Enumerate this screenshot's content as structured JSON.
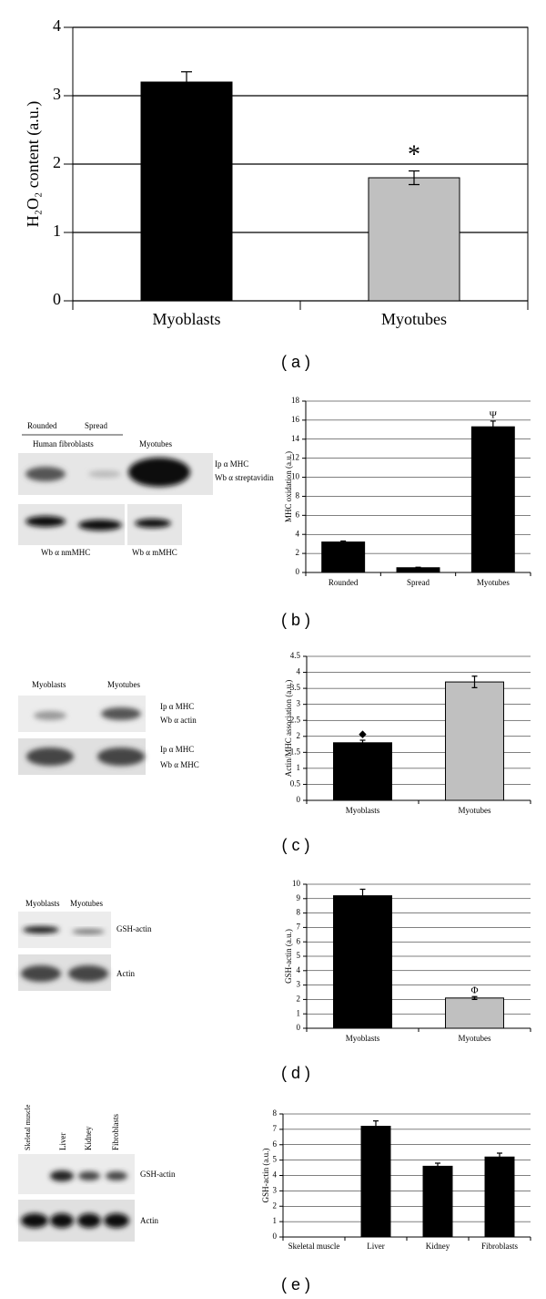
{
  "chart_data": [
    {
      "type": "bar",
      "y_label": "H₂O₂ content (a.u.)",
      "categories": [
        "Myoblasts",
        "Myotubes"
      ],
      "values": [
        3.2,
        1.8
      ],
      "errors": [
        0.15,
        0.1
      ],
      "colors": [
        "#000000",
        "#c0c0c0"
      ],
      "annotations": [
        null,
        "*"
      ],
      "ylim": [
        0,
        4
      ],
      "yticks": [
        0,
        1,
        2,
        3,
        4
      ],
      "grid": true
    },
    {
      "type": "bar",
      "y_label": "MHC oxidation (a.u.)",
      "categories": [
        "Rounded",
        "Spread",
        "Myotubes"
      ],
      "values": [
        3.2,
        0.5,
        15.3
      ],
      "errors": [
        0.1,
        0.05,
        0.6
      ],
      "colors": [
        "#000000",
        "#000000",
        "#000000"
      ],
      "annotations": [
        null,
        null,
        "Ψ"
      ],
      "ylim": [
        0,
        18
      ],
      "yticks": [
        0,
        2,
        4,
        6,
        8,
        10,
        12,
        14,
        16,
        18
      ],
      "grid": true
    },
    {
      "type": "bar",
      "y_label": "Actin/MHC association (a.u.)",
      "categories": [
        "Myoblasts",
        "Myotubes"
      ],
      "values": [
        1.8,
        3.7
      ],
      "errors": [
        0.08,
        0.18
      ],
      "colors": [
        "#000000",
        "#c0c0c0"
      ],
      "annotations": [
        "◆",
        null
      ],
      "ylim": [
        0,
        4.5
      ],
      "yticks": [
        0,
        0.5,
        1,
        1.5,
        2,
        2.5,
        3,
        3.5,
        4,
        4.5
      ],
      "grid": true
    },
    {
      "type": "bar",
      "y_label": "GSH-actin (a.u.)",
      "categories": [
        "Myoblasts",
        "Myotubes"
      ],
      "values": [
        9.2,
        2.1
      ],
      "errors": [
        0.45,
        0.1
      ],
      "colors": [
        "#000000",
        "#c0c0c0"
      ],
      "annotations": [
        null,
        "Φ"
      ],
      "ylim": [
        0,
        10
      ],
      "yticks": [
        0,
        1,
        2,
        3,
        4,
        5,
        6,
        7,
        8,
        9,
        10
      ],
      "grid": true
    },
    {
      "type": "bar",
      "y_label": "GSH-actin (a.u.)",
      "categories": [
        "Skeletal muscle",
        "Liver",
        "Kidney",
        "Fibroblasts"
      ],
      "values": [
        0,
        7.2,
        4.6,
        5.2
      ],
      "errors": [
        null,
        0.35,
        0.2,
        0.25
      ],
      "colors": [
        "#000000",
        "#000000",
        "#000000",
        "#000000"
      ],
      "annotations": [
        null,
        null,
        null,
        null
      ],
      "ylim": [
        0,
        8
      ],
      "yticks": [
        0,
        1,
        2,
        3,
        4,
        5,
        6,
        7,
        8
      ],
      "grid": true
    }
  ],
  "panel_labels": [
    "( a )",
    "( b )",
    "( c )",
    "( d )",
    "( e )"
  ],
  "blots": {
    "b": {
      "lanes": [
        "Rounded",
        "Spread"
      ],
      "group": "Human fibroblasts",
      "third_lane": "Myotubes",
      "probes": [
        "Ip α MHC",
        "Wb α streptavidin"
      ],
      "bottom": [
        "Wb α nmMHC",
        "Wb α mMHC"
      ]
    },
    "c": {
      "lanes": [
        "Myoblasts",
        "Myotubes"
      ],
      "probes_top": [
        "Ip α MHC",
        "Wb α actin"
      ],
      "probes_bottom": [
        "Ip α MHC",
        "Wb α MHC"
      ]
    },
    "d": {
      "lanes": [
        "Myoblasts",
        "Myotubes"
      ],
      "probes": [
        "GSH-actin",
        "Actin"
      ]
    },
    "e": {
      "lanes": [
        "Skeletal muscle",
        "Liver",
        "Kidney",
        "Fibroblasts"
      ],
      "probes": [
        "GSH-actin",
        "Actin"
      ]
    }
  }
}
